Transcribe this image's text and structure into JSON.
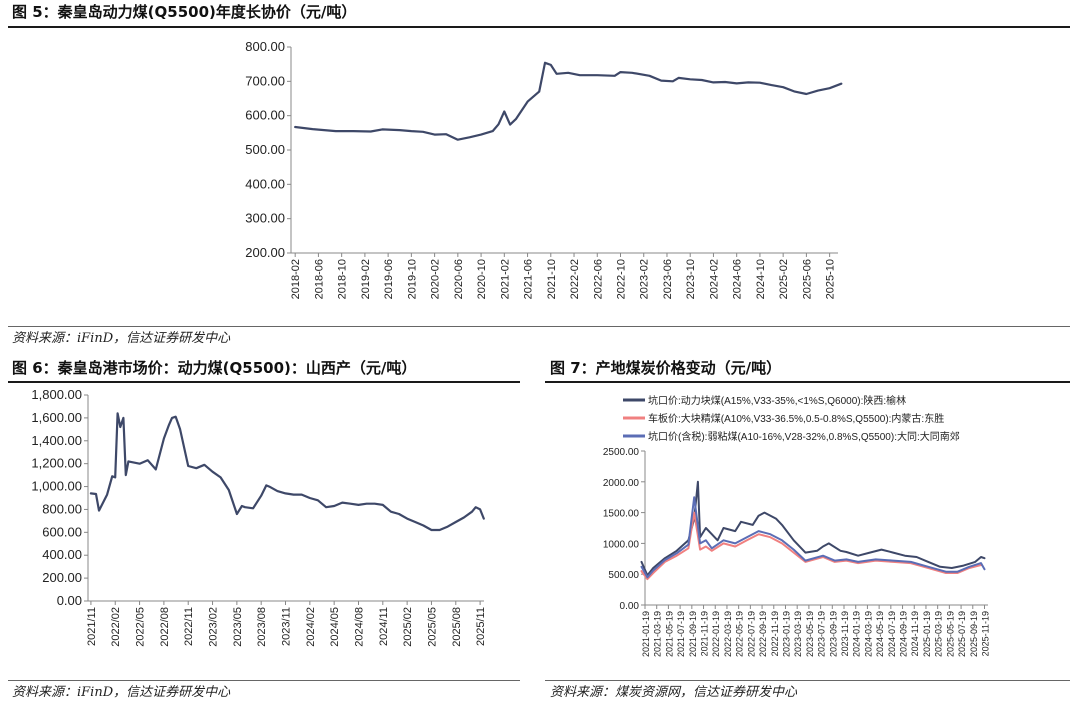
{
  "figures": [
    {
      "title": "图 5：秦皇岛动力煤(Q5500)年度长协价（元/吨）",
      "source": "资料来源：iFinD，信达证券研发中心"
    },
    {
      "title": "图 6：秦皇岛港市场价：动力煤(Q5500)：山西产（元/吨）",
      "source": "资料来源：iFinD，信达证券研发中心"
    },
    {
      "title": "图 7：产地煤炭价格变动（元/吨）",
      "source": "资料来源：煤炭资源网，信达证券研发中心"
    }
  ],
  "colors": {
    "navy": "#3e4868",
    "pink": "#f08080",
    "blue": "#5b6db5",
    "axis": "#888888"
  },
  "chart_data": [
    {
      "type": "line",
      "title": "",
      "ylim": [
        200,
        800
      ],
      "yticks": [
        "200.00",
        "300.00",
        "400.00",
        "500.00",
        "600.00",
        "700.00",
        "800.00"
      ],
      "xticks": [
        "2018-02",
        "2018-06",
        "2018-10",
        "2019-02",
        "2019-06",
        "2019-10",
        "2020-02",
        "2020-06",
        "2020-10",
        "2021-02",
        "2021-06",
        "2021-10",
        "2022-02",
        "2022-06",
        "2022-10",
        "2023-02",
        "2023-06",
        "2023-10",
        "2024-02",
        "2024-06",
        "2024-10",
        "2025-02",
        "2025-06",
        "2025-10"
      ],
      "series": [
        {
          "values": [
            [
              "2018-02",
              567
            ],
            [
              "2018-05",
              561
            ],
            [
              "2018-09",
              555
            ],
            [
              "2018-12",
              555
            ],
            [
              "2019-03",
              554
            ],
            [
              "2019-05",
              560
            ],
            [
              "2019-08",
              558
            ],
            [
              "2019-10",
              555
            ],
            [
              "2019-12",
              553
            ],
            [
              "2020-02",
              545
            ],
            [
              "2020-04",
              546
            ],
            [
              "2020-06",
              530
            ],
            [
              "2020-08",
              537
            ],
            [
              "2020-10",
              545
            ],
            [
              "2020-12",
              555
            ],
            [
              "2021-01",
              575
            ],
            [
              "2021-02",
              612
            ],
            [
              "2021-03",
              574
            ],
            [
              "2021-04",
              590
            ],
            [
              "2021-06",
              641
            ],
            [
              "2021-08",
              670
            ],
            [
              "2021-09",
              754
            ],
            [
              "2021-10",
              748
            ],
            [
              "2021-11",
              722
            ],
            [
              "2022-01",
              725
            ],
            [
              "2022-03",
              718
            ],
            [
              "2022-06",
              718
            ],
            [
              "2022-09",
              716
            ],
            [
              "2022-10",
              727
            ],
            [
              "2022-12",
              725
            ],
            [
              "2023-03",
              716
            ],
            [
              "2023-05",
              702
            ],
            [
              "2023-07",
              700
            ],
            [
              "2023-08",
              710
            ],
            [
              "2023-10",
              706
            ],
            [
              "2023-12",
              704
            ],
            [
              "2024-02",
              697
            ],
            [
              "2024-04",
              698
            ],
            [
              "2024-06",
              694
            ],
            [
              "2024-08",
              697
            ],
            [
              "2024-10",
              696
            ],
            [
              "2024-12",
              689
            ],
            [
              "2025-02",
              683
            ],
            [
              "2025-04",
              670
            ],
            [
              "2025-06",
              663
            ],
            [
              "2025-08",
              673
            ],
            [
              "2025-10",
              680
            ],
            [
              "2025-12",
              693
            ]
          ]
        }
      ]
    },
    {
      "type": "line",
      "title": "",
      "ylim": [
        0,
        1800
      ],
      "yticks": [
        "0.00",
        "200.00",
        "400.00",
        "600.00",
        "800.00",
        "1,000.00",
        "1,200.00",
        "1,400.00",
        "1,600.00",
        "1,800.00"
      ],
      "xticks": [
        "2021/11",
        "2022/02",
        "2022/05",
        "2022/08",
        "2022/11",
        "2023/02",
        "2023/05",
        "2023/08",
        "2023/11",
        "2024/02",
        "2024/05",
        "2024/08",
        "2024/11",
        "2025/02",
        "2025/05",
        "2025/08",
        "2025/11"
      ],
      "series": [
        {
          "values": [
            [
              "2021-11",
              940
            ],
            [
              "2021-11-20",
              935
            ],
            [
              "2021-12",
              790
            ],
            [
              "2022-01",
              930
            ],
            [
              "2022-01-20",
              1090
            ],
            [
              "2022-02",
              1080
            ],
            [
              "2022-02-10",
              1640
            ],
            [
              "2022-02-20",
              1520
            ],
            [
              "2022-03",
              1600
            ],
            [
              "2022-03-10",
              1100
            ],
            [
              "2022-03-20",
              1220
            ],
            [
              "2022-05",
              1200
            ],
            [
              "2022-06",
              1230
            ],
            [
              "2022-07",
              1150
            ],
            [
              "2022-08",
              1420
            ],
            [
              "2022-08-20",
              1540
            ],
            [
              "2022-09",
              1600
            ],
            [
              "2022-09-15",
              1610
            ],
            [
              "2022-10",
              1500
            ],
            [
              "2022-11",
              1180
            ],
            [
              "2022-12",
              1160
            ],
            [
              "2023-01",
              1190
            ],
            [
              "2023-02",
              1130
            ],
            [
              "2023-03",
              1080
            ],
            [
              "2023-04",
              970
            ],
            [
              "2023-05",
              760
            ],
            [
              "2023-05-20",
              830
            ],
            [
              "2023-06",
              820
            ],
            [
              "2023-07",
              810
            ],
            [
              "2023-08",
              920
            ],
            [
              "2023-08-20",
              1010
            ],
            [
              "2023-09",
              1000
            ],
            [
              "2023-10",
              960
            ],
            [
              "2023-11",
              940
            ],
            [
              "2023-12",
              930
            ],
            [
              "2024-01",
              930
            ],
            [
              "2024-02",
              900
            ],
            [
              "2024-03",
              880
            ],
            [
              "2024-04",
              820
            ],
            [
              "2024-05",
              830
            ],
            [
              "2024-06",
              860
            ],
            [
              "2024-07",
              850
            ],
            [
              "2024-08",
              840
            ],
            [
              "2024-09",
              850
            ],
            [
              "2024-10",
              850
            ],
            [
              "2024-11",
              840
            ],
            [
              "2024-12",
              780
            ],
            [
              "2025-01",
              760
            ],
            [
              "2025-02",
              720
            ],
            [
              "2025-03",
              690
            ],
            [
              "2025-04",
              660
            ],
            [
              "2025-05",
              620
            ],
            [
              "2025-06",
              620
            ],
            [
              "2025-07",
              650
            ],
            [
              "2025-08",
              690
            ],
            [
              "2025-09",
              730
            ],
            [
              "2025-10",
              780
            ],
            [
              "2025-10-15",
              820
            ],
            [
              "2025-11",
              800
            ],
            [
              "2025-11-15",
              720
            ]
          ]
        }
      ]
    },
    {
      "type": "line",
      "title": "",
      "ylim": [
        0,
        2500
      ],
      "yticks": [
        "0.00",
        "500.00",
        "1000.00",
        "1500.00",
        "2000.00",
        "2500.00"
      ],
      "xticks": [
        "2021-01-19",
        "2021-03-19",
        "2021-05-19",
        "2021-07-19",
        "2021-09-19",
        "2021-11-19",
        "2022-01-19",
        "2022-03-19",
        "2022-05-19",
        "2022-07-19",
        "2022-09-19",
        "2022-11-19",
        "2023-01-19",
        "2023-03-19",
        "2023-05-19",
        "2023-07-19",
        "2023-09-19",
        "2023-11-19",
        "2024-01-19",
        "2024-03-19",
        "2024-05-19",
        "2024-07-19",
        "2024-09-19",
        "2024-11-19",
        "2025-01-19",
        "2025-03-19",
        "2025-05-19",
        "2025-07-19",
        "2025-09-19",
        "2025-11-19"
      ],
      "legend": {
        "position": "top",
        "entries": [
          "坑口价:动力块煤(A15%,V33-35%,<1%S,Q6000):陕西:榆林",
          "车板价:大块精煤(A10%,V33-36.5%,0.5-0.8%S,Q5500):内蒙古:东胜",
          "坑口价(含税):弱粘煤(A10-16%,V28-32%,0.8%S,Q5500):大同:大同南郊"
        ]
      },
      "series": [
        {
          "name": "坑口价:动力块煤(A15%,V33-35%,<1%S,Q6000):陕西:榆林",
          "values": [
            [
              "2021-01",
              700
            ],
            [
              "2021-02",
              480
            ],
            [
              "2021-03",
              600
            ],
            [
              "2021-05",
              760
            ],
            [
              "2021-07",
              880
            ],
            [
              "2021-09",
              1050
            ],
            [
              "2021-10",
              1400
            ],
            [
              "2021-10-20",
              2000
            ],
            [
              "2021-11",
              1100
            ],
            [
              "2021-12",
              1250
            ],
            [
              "2022-01",
              1150
            ],
            [
              "2022-02",
              1050
            ],
            [
              "2022-03",
              1250
            ],
            [
              "2022-05",
              1200
            ],
            [
              "2022-06",
              1350
            ],
            [
              "2022-08",
              1300
            ],
            [
              "2022-09",
              1450
            ],
            [
              "2022-10",
              1500
            ],
            [
              "2022-12",
              1400
            ],
            [
              "2023-01",
              1300
            ],
            [
              "2023-03",
              1050
            ],
            [
              "2023-05",
              850
            ],
            [
              "2023-07",
              880
            ],
            [
              "2023-08",
              950
            ],
            [
              "2023-09",
              1000
            ],
            [
              "2023-11",
              880
            ],
            [
              "2023-12",
              860
            ],
            [
              "2024-02",
              800
            ],
            [
              "2024-04",
              850
            ],
            [
              "2024-06",
              900
            ],
            [
              "2024-08",
              850
            ],
            [
              "2024-10",
              800
            ],
            [
              "2024-12",
              780
            ],
            [
              "2025-02",
              700
            ],
            [
              "2025-04",
              620
            ],
            [
              "2025-06",
              600
            ],
            [
              "2025-08",
              640
            ],
            [
              "2025-10",
              700
            ],
            [
              "2025-11",
              780
            ],
            [
              "2025-11-19",
              760
            ]
          ]
        },
        {
          "name": "车板价:大块精煤(A10%,V33-36.5%,0.5-0.8%S,Q5500):内蒙古:东胜",
          "values": [
            [
              "2021-01",
              550
            ],
            [
              "2021-02",
              420
            ],
            [
              "2021-03",
              520
            ],
            [
              "2021-05",
              700
            ],
            [
              "2021-07",
              800
            ],
            [
              "2021-09",
              920
            ],
            [
              "2021-10",
              1500
            ],
            [
              "2021-11",
              900
            ],
            [
              "2021-12",
              950
            ],
            [
              "2022-01",
              880
            ],
            [
              "2022-03",
              1000
            ],
            [
              "2022-05",
              950
            ],
            [
              "2022-07",
              1050
            ],
            [
              "2022-09",
              1150
            ],
            [
              "2022-11",
              1100
            ],
            [
              "2023-01",
              1000
            ],
            [
              "2023-03",
              850
            ],
            [
              "2023-05",
              700
            ],
            [
              "2023-08",
              780
            ],
            [
              "2023-10",
              700
            ],
            [
              "2023-12",
              720
            ],
            [
              "2024-02",
              680
            ],
            [
              "2024-05",
              720
            ],
            [
              "2024-08",
              700
            ],
            [
              "2024-11",
              680
            ],
            [
              "2025-02",
              600
            ],
            [
              "2025-05",
              520
            ],
            [
              "2025-07",
              520
            ],
            [
              "2025-09",
              600
            ],
            [
              "2025-11",
              650
            ]
          ]
        },
        {
          "name": "坑口价(含税):弱粘煤(A10-16%,V28-32%,0.8%S,Q5500):大同:大同南郊",
          "values": [
            [
              "2021-01",
              620
            ],
            [
              "2021-02",
              450
            ],
            [
              "2021-03",
              560
            ],
            [
              "2021-05",
              730
            ],
            [
              "2021-07",
              840
            ],
            [
              "2021-09",
              980
            ],
            [
              "2021-10",
              1750
            ],
            [
              "2021-11",
              1000
            ],
            [
              "2021-12",
              1050
            ],
            [
              "2022-01",
              920
            ],
            [
              "2022-03",
              1050
            ],
            [
              "2022-05",
              1000
            ],
            [
              "2022-07",
              1100
            ],
            [
              "2022-09",
              1200
            ],
            [
              "2022-11",
              1150
            ],
            [
              "2023-01",
              1050
            ],
            [
              "2023-03",
              900
            ],
            [
              "2023-05",
              720
            ],
            [
              "2023-08",
              800
            ],
            [
              "2023-10",
              720
            ],
            [
              "2023-12",
              740
            ],
            [
              "2024-02",
              700
            ],
            [
              "2024-05",
              740
            ],
            [
              "2024-08",
              720
            ],
            [
              "2024-11",
              700
            ],
            [
              "2025-02",
              620
            ],
            [
              "2025-05",
              540
            ],
            [
              "2025-07",
              540
            ],
            [
              "2025-09",
              620
            ],
            [
              "2025-11",
              680
            ],
            [
              "2025-11-19",
              580
            ]
          ]
        }
      ]
    }
  ]
}
